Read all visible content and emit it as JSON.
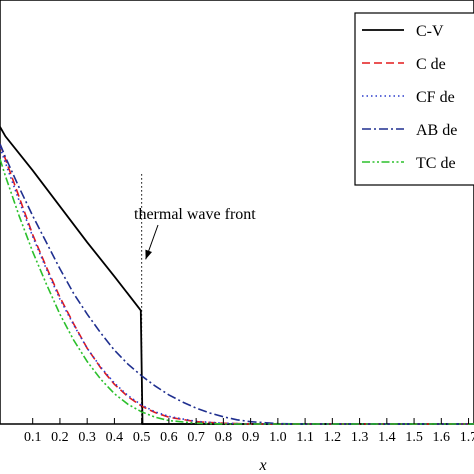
{
  "chart_data": {
    "type": "line",
    "xlabel": "x",
    "ylabel": "",
    "title": "",
    "xlim": [
      -0.02,
      1.72
    ],
    "ylim": [
      0,
      1.12
    ],
    "x_ticks": [
      "0.1",
      "0.2",
      "0.3",
      "0.4",
      "0.5",
      "0.6",
      "0.7",
      "0.8",
      "0.9",
      "1.0",
      "1.1",
      "1.2",
      "1.3",
      "1.4",
      "1.5",
      "1.6",
      "1.7"
    ],
    "x_tick_values": [
      0.1,
      0.2,
      0.3,
      0.4,
      0.5,
      0.6,
      0.7,
      0.8,
      0.9,
      1.0,
      1.1,
      1.2,
      1.3,
      1.4,
      1.5,
      1.6,
      1.7
    ],
    "legend_position": "top-right",
    "annotation": {
      "text": "thermal wave front",
      "x": 0.5
    },
    "series": [
      {
        "name": "C-V",
        "color": "#000000",
        "dash": "solid",
        "x": [
          -0.02,
          0.0,
          0.1,
          0.2,
          0.3,
          0.4,
          0.497,
          0.503,
          0.6,
          0.8,
          1.0,
          1.72
        ],
        "y": [
          0.785,
          0.76,
          0.67,
          0.575,
          0.48,
          0.39,
          0.3,
          0.0,
          0.0,
          0.0,
          0.0,
          0.0
        ]
      },
      {
        "name": "C de",
        "color": "#e41a1c",
        "dash": "dashed",
        "x": [
          -0.02,
          0.0,
          0.05,
          0.1,
          0.15,
          0.2,
          0.25,
          0.3,
          0.35,
          0.4,
          0.45,
          0.5,
          0.55,
          0.6,
          0.7,
          0.8,
          0.9,
          1.0,
          1.72
        ],
        "y": [
          0.74,
          0.7,
          0.6,
          0.5,
          0.415,
          0.335,
          0.265,
          0.2,
          0.148,
          0.105,
          0.072,
          0.047,
          0.03,
          0.018,
          0.006,
          0.002,
          0.0,
          0.0,
          0.0
        ]
      },
      {
        "name": "CF de",
        "color": "#2b3ccc",
        "dash": "dotted",
        "x": [
          -0.02,
          0.0,
          0.05,
          0.1,
          0.15,
          0.2,
          0.25,
          0.3,
          0.35,
          0.4,
          0.45,
          0.5,
          0.55,
          0.6,
          0.7,
          0.8,
          0.9,
          1.0,
          1.72
        ],
        "y": [
          0.73,
          0.69,
          0.59,
          0.495,
          0.41,
          0.33,
          0.262,
          0.2,
          0.15,
          0.108,
          0.075,
          0.05,
          0.032,
          0.02,
          0.007,
          0.002,
          0.0,
          0.0,
          0.0
        ]
      },
      {
        "name": "AB de",
        "color": "#1f2f8f",
        "dash": "dashdot",
        "x": [
          -0.02,
          0.0,
          0.05,
          0.1,
          0.15,
          0.2,
          0.25,
          0.3,
          0.35,
          0.4,
          0.45,
          0.5,
          0.55,
          0.6,
          0.65,
          0.7,
          0.75,
          0.8,
          0.85,
          0.9,
          1.0,
          1.1,
          1.72
        ],
        "y": [
          0.74,
          0.705,
          0.625,
          0.55,
          0.48,
          0.41,
          0.345,
          0.29,
          0.24,
          0.195,
          0.158,
          0.127,
          0.1,
          0.077,
          0.058,
          0.042,
          0.029,
          0.019,
          0.011,
          0.006,
          0.001,
          0.0,
          0.0
        ]
      },
      {
        "name": "TC de",
        "color": "#2cc02c",
        "dash": "dashdotdot",
        "x": [
          -0.02,
          0.0,
          0.05,
          0.1,
          0.15,
          0.2,
          0.25,
          0.3,
          0.35,
          0.4,
          0.45,
          0.5,
          0.55,
          0.6,
          0.7,
          0.8,
          0.9,
          1.72
        ],
        "y": [
          0.7,
          0.655,
          0.55,
          0.455,
          0.37,
          0.29,
          0.222,
          0.165,
          0.118,
          0.08,
          0.052,
          0.032,
          0.018,
          0.009,
          0.002,
          0.0,
          0.0,
          0.0
        ]
      }
    ]
  }
}
